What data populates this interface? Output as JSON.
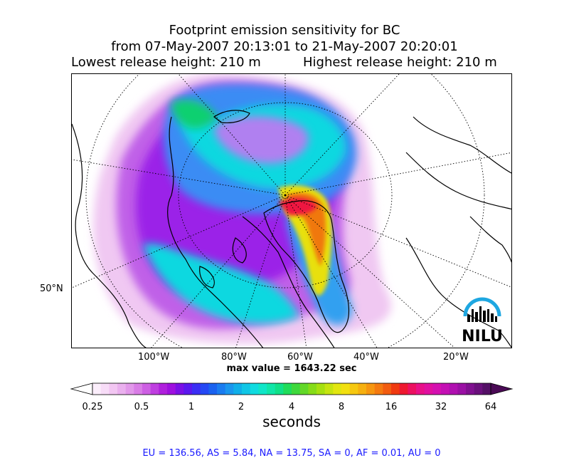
{
  "title": {
    "line1": "Footprint emission sensitivity for BC",
    "line2": "from 07-May-2007 20:13:01 to 21-May-2007 20:20:01",
    "lowest": "Lowest release height: 210 m",
    "highest": "Highest release height: 210 m"
  },
  "map": {
    "lat_labels": [
      "50°N"
    ],
    "lon_labels": [
      "100°W",
      "80°W",
      "60°W",
      "40°W",
      "20°W"
    ],
    "logo_text": "NILU",
    "logo_color": "#1ea7e1"
  },
  "max_value_text": "max value = 1643.22 sec",
  "colorbar": {
    "tick_labels": [
      "0.25",
      "0.5",
      "1",
      "2",
      "4",
      "8",
      "16",
      "32",
      "64"
    ],
    "unit_label": "seconds",
    "colors": [
      "#fbeefb",
      "#f7dcf7",
      "#f2c6f2",
      "#eab0ee",
      "#e298ea",
      "#d97de6",
      "#cd5fe3",
      "#bf3fe0",
      "#b020dd",
      "#9e10df",
      "#7a10e6",
      "#5a18ee",
      "#3b2ef4",
      "#2548f4",
      "#1a62f0",
      "#1a7cf0",
      "#1a96ee",
      "#10afe9",
      "#10c6e6",
      "#10dbe0",
      "#10e6c8",
      "#10e6a8",
      "#10e088",
      "#20dc5a",
      "#3ed83c",
      "#62d828",
      "#86dc18",
      "#a6e010",
      "#c6e410",
      "#e2e610",
      "#f2e010",
      "#f6c810",
      "#f6b010",
      "#f69610",
      "#f47a10",
      "#f25c10",
      "#f03a10",
      "#ee1830",
      "#ec1060",
      "#e81088",
      "#e010a0",
      "#d410b0",
      "#c410b4",
      "#b010b0",
      "#9a10a4",
      "#801090",
      "#6a107c",
      "#541066"
    ]
  },
  "region_text": "EU = 136.56,  AS = 5.84,  NA = 13.75,  SA = 0,  AF = 0.01,  AU = 0"
}
